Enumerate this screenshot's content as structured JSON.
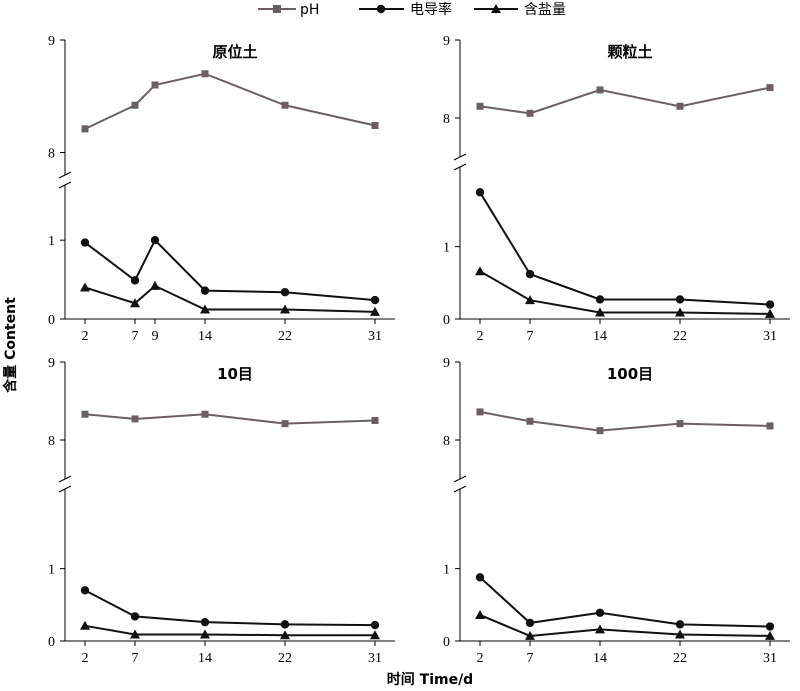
{
  "legend": [
    {
      "name": "pH",
      "marker": "square",
      "color": "#6b5f63"
    },
    {
      "name": "电导率",
      "marker": "circle",
      "color": "#111111"
    },
    {
      "name": "含盐量",
      "marker": "triangle",
      "color": "#111111"
    }
  ],
  "axes": {
    "ylabel": "含量 Content",
    "xlabel": "时间 Time/d"
  },
  "chart_data": [
    {
      "type": "line",
      "title": "原位土",
      "x": [
        2,
        7,
        9,
        14,
        22,
        31
      ],
      "x_ticks": [
        "2",
        "7",
        "9",
        "14",
        "22",
        "31"
      ],
      "upper_ylim": [
        7.8,
        9
      ],
      "upper_ticks": [
        "8",
        "9"
      ],
      "lower_ylim": [
        0,
        1.7
      ],
      "lower_ticks": [
        "0",
        "1"
      ],
      "series": [
        {
          "name": "pH",
          "values": [
            8.21,
            8.42,
            8.6,
            8.7,
            8.42,
            8.24
          ]
        },
        {
          "name": "电导率",
          "values": [
            0.97,
            0.49,
            1.0,
            0.36,
            0.34,
            0.24
          ]
        },
        {
          "name": "含盐量",
          "values": [
            0.4,
            0.2,
            0.42,
            0.12,
            0.12,
            0.09
          ]
        }
      ]
    },
    {
      "type": "line",
      "title": "颗粒土",
      "x": [
        2,
        7,
        14,
        22,
        31
      ],
      "x_ticks": [
        "2",
        "7",
        "14",
        "22",
        "31"
      ],
      "upper_ylim": [
        7.5,
        9
      ],
      "upper_ticks": [
        "8",
        "9"
      ],
      "lower_ylim": [
        0,
        2.1
      ],
      "lower_ticks": [
        "0",
        "1"
      ],
      "series": [
        {
          "name": "pH",
          "values": [
            8.15,
            8.06,
            8.36,
            8.15,
            8.39
          ]
        },
        {
          "name": "电导率",
          "values": [
            1.75,
            0.62,
            0.27,
            0.27,
            0.2
          ]
        },
        {
          "name": "含盐量",
          "values": [
            0.66,
            0.26,
            0.09,
            0.09,
            0.07
          ]
        }
      ]
    },
    {
      "type": "line",
      "title": "10目",
      "x": [
        2,
        7,
        14,
        22,
        31
      ],
      "x_ticks": [
        "2",
        "7",
        "14",
        "22",
        "31"
      ],
      "upper_ylim": [
        7.5,
        9
      ],
      "upper_ticks": [
        "8",
        "9"
      ],
      "lower_ylim": [
        0,
        2.1
      ],
      "lower_ticks": [
        "0",
        "1"
      ],
      "series": [
        {
          "name": "pH",
          "values": [
            8.33,
            8.27,
            8.33,
            8.21,
            8.25
          ]
        },
        {
          "name": "电导率",
          "values": [
            0.7,
            0.34,
            0.26,
            0.23,
            0.22
          ]
        },
        {
          "name": "含盐量",
          "values": [
            0.21,
            0.09,
            0.09,
            0.08,
            0.08
          ]
        }
      ]
    },
    {
      "type": "line",
      "title": "100目",
      "x": [
        2,
        7,
        14,
        22,
        31
      ],
      "x_ticks": [
        "2",
        "7",
        "14",
        "22",
        "31"
      ],
      "upper_ylim": [
        7.5,
        9
      ],
      "upper_ticks": [
        "8",
        "9"
      ],
      "lower_ylim": [
        0,
        2.1
      ],
      "lower_ticks": [
        "0",
        "1"
      ],
      "series": [
        {
          "name": "pH",
          "values": [
            8.36,
            8.24,
            8.12,
            8.21,
            8.18
          ]
        },
        {
          "name": "电导率",
          "values": [
            0.88,
            0.25,
            0.39,
            0.23,
            0.2
          ]
        },
        {
          "name": "含盐量",
          "values": [
            0.36,
            0.07,
            0.16,
            0.09,
            0.07
          ]
        }
      ]
    }
  ]
}
